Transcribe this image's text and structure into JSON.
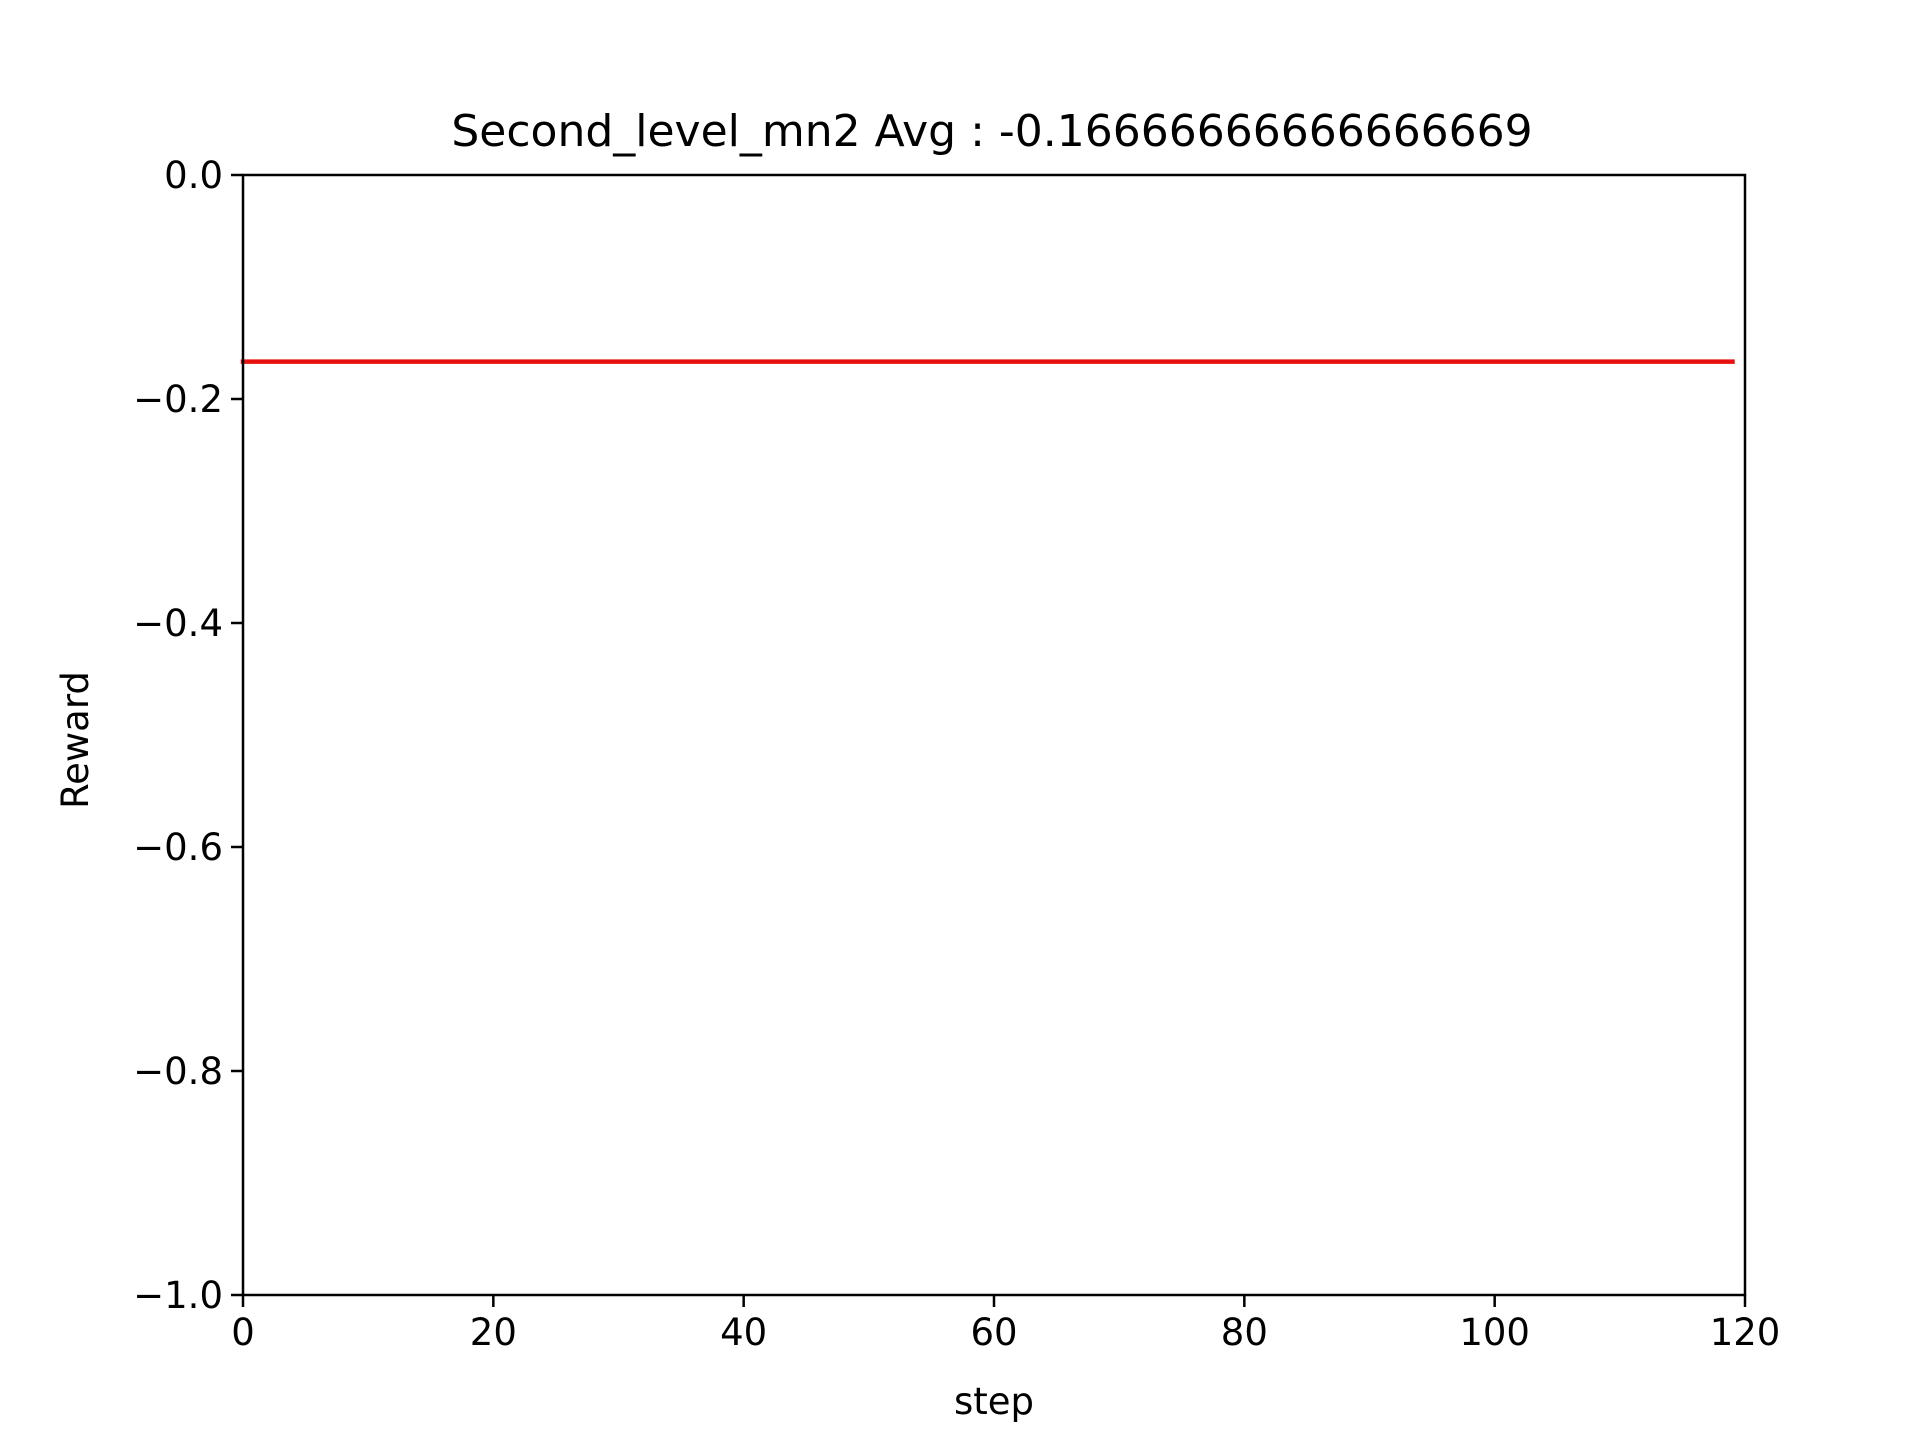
{
  "chart_data": {
    "type": "line",
    "title": "Second_level_mn2 Avg : -0.16666666666666669",
    "xlabel": "step",
    "ylabel": "Reward",
    "xlim": [
      0,
      120
    ],
    "ylim": [
      -1.0,
      0.0
    ],
    "grid": false,
    "legend": "none",
    "x_ticks": [
      0,
      20,
      40,
      60,
      80,
      100,
      120
    ],
    "x_tick_labels": [
      "0",
      "20",
      "40",
      "60",
      "80",
      "100",
      "120"
    ],
    "y_ticks": [
      0.0,
      -0.2,
      -0.4,
      -0.6,
      -0.8,
      -1.0
    ],
    "y_tick_labels": [
      "0.0",
      "−0.2",
      "−0.4",
      "−0.6",
      "−0.8",
      "−1.0"
    ],
    "series": [
      {
        "color": "#e8100c",
        "x": [
          0,
          119
        ],
        "y": [
          -0.16666666666666669,
          -0.16666666666666669
        ]
      }
    ]
  }
}
